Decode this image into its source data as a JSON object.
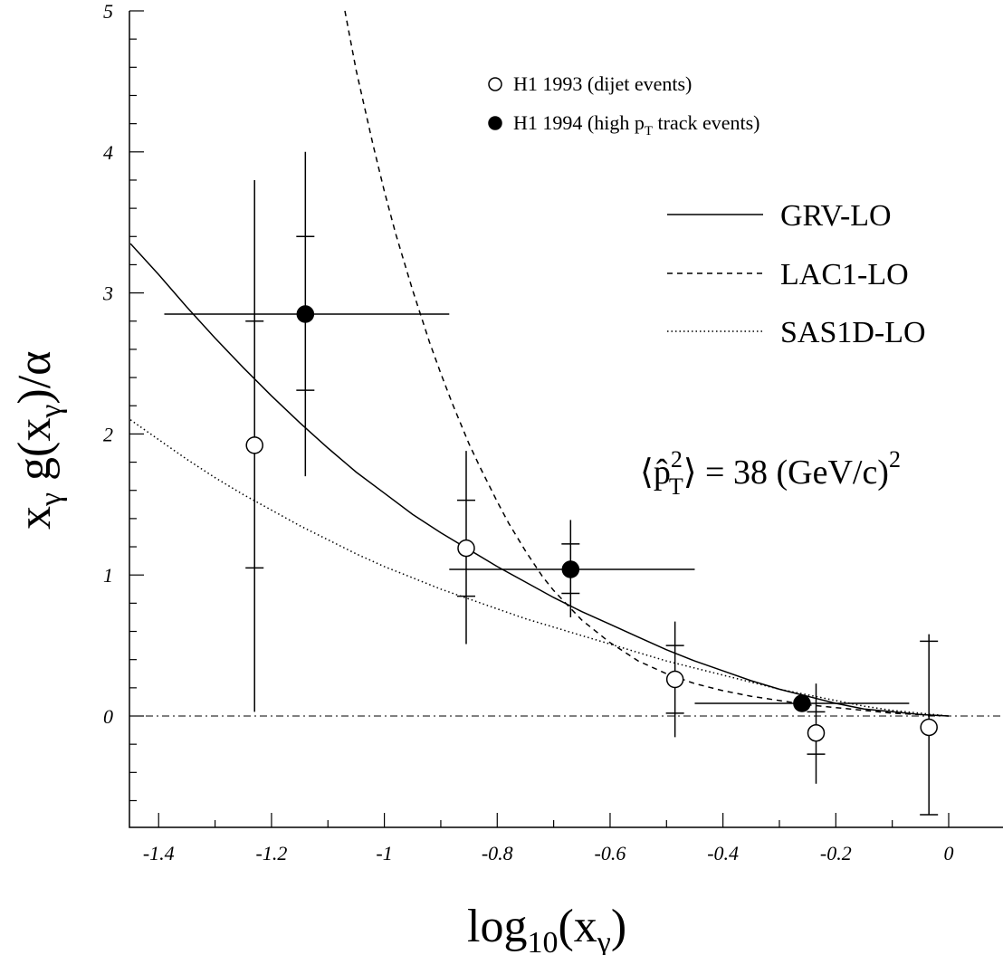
{
  "chart_data": {
    "type": "scatter",
    "xlabel": "log₁₀(xγ)",
    "ylabel": "xγ g(xγ)/α",
    "xlim": [
      -1.45,
      0.2
    ],
    "ylim": [
      -0.8,
      5
    ],
    "x_ticks": [
      "-1.4",
      "-1.2",
      "-1",
      "-0.8",
      "-0.6",
      "-0.4",
      "-0.2",
      "0"
    ],
    "y_ticks": [
      "0",
      "1",
      "2",
      "3",
      "4",
      "5"
    ],
    "annotation": "⟨p̂T²⟩ = 38 (GeV/c)²",
    "reference_line": {
      "y": 0,
      "style": "dash-dot"
    },
    "series": [
      {
        "name": "H1 1993 (dijet events)",
        "marker": "open-circle",
        "points": [
          {
            "x": -1.23,
            "y": 1.92,
            "stat_lo": 1.05,
            "stat_hi": 2.8,
            "tot_lo": 0.03,
            "tot_hi": 3.8
          },
          {
            "x": -0.855,
            "y": 1.19,
            "stat_lo": 0.85,
            "stat_hi": 1.53,
            "tot_lo": 0.51,
            "tot_hi": 1.88
          },
          {
            "x": -0.485,
            "y": 0.26,
            "stat_lo": 0.02,
            "stat_hi": 0.5,
            "tot_lo": -0.15,
            "tot_hi": 0.67
          },
          {
            "x": -0.235,
            "y": -0.12,
            "stat_lo": -0.27,
            "stat_hi": 0.03,
            "tot_lo": -0.48,
            "tot_hi": 0.23
          },
          {
            "x": -0.035,
            "y": -0.08,
            "stat_lo": -0.7,
            "stat_hi": 0.53,
            "tot_lo": -0.7,
            "tot_hi": 0.58
          }
        ]
      },
      {
        "name": "H1 1994 (high pT track events)",
        "marker": "filled-circle",
        "points": [
          {
            "x": -1.14,
            "x_lo": -1.39,
            "x_hi": -0.885,
            "y": 2.85,
            "stat_lo": 2.31,
            "stat_hi": 3.4,
            "tot_lo": 1.7,
            "tot_hi": 4.0
          },
          {
            "x": -0.67,
            "x_lo": -0.885,
            "x_hi": -0.45,
            "y": 1.04,
            "stat_lo": 0.87,
            "stat_hi": 1.22,
            "tot_lo": 0.7,
            "tot_hi": 1.39
          },
          {
            "x": -0.26,
            "x_lo": -0.45,
            "x_hi": -0.07,
            "y": 0.09,
            "stat_lo": 0.09,
            "stat_hi": 0.09,
            "tot_lo": 0.09,
            "tot_hi": 0.09
          }
        ]
      }
    ],
    "curves": [
      {
        "name": "GRV-LO",
        "style": "solid",
        "x": [
          -1.45,
          -1.4,
          -1.35,
          -1.3,
          -1.25,
          -1.2,
          -1.15,
          -1.1,
          -1.05,
          -1.0,
          -0.95,
          -0.9,
          -0.85,
          -0.8,
          -0.75,
          -0.7,
          -0.65,
          -0.6,
          -0.55,
          -0.5,
          -0.45,
          -0.4,
          -0.35,
          -0.3,
          -0.25,
          -0.2,
          -0.15,
          -0.1,
          -0.05,
          0.0
        ],
        "y": [
          3.35,
          3.13,
          2.9,
          2.68,
          2.47,
          2.27,
          2.08,
          1.9,
          1.73,
          1.58,
          1.43,
          1.3,
          1.18,
          1.06,
          0.95,
          0.84,
          0.74,
          0.65,
          0.56,
          0.47,
          0.39,
          0.32,
          0.25,
          0.19,
          0.14,
          0.09,
          0.05,
          0.03,
          0.01,
          0.0
        ]
      },
      {
        "name": "LAC1-LO",
        "style": "dashed",
        "x": [
          -1.07,
          -1.05,
          -1.02,
          -1.0,
          -0.98,
          -0.95,
          -0.92,
          -0.9,
          -0.88,
          -0.85,
          -0.83,
          -0.8,
          -0.78,
          -0.75,
          -0.72,
          -0.7,
          -0.65,
          -0.6,
          -0.55,
          -0.5,
          -0.45,
          -0.4,
          -0.35,
          -0.3,
          -0.25,
          -0.2,
          -0.15,
          -0.1,
          -0.05,
          0.0
        ],
        "y": [
          5.0,
          4.58,
          4.05,
          3.72,
          3.42,
          3.02,
          2.65,
          2.43,
          2.22,
          1.93,
          1.76,
          1.52,
          1.37,
          1.17,
          0.99,
          0.89,
          0.68,
          0.52,
          0.39,
          0.3,
          0.23,
          0.18,
          0.14,
          0.11,
          0.08,
          0.06,
          0.04,
          0.02,
          0.01,
          0.0
        ]
      },
      {
        "name": "SAS1D-LO",
        "style": "dotted",
        "x": [
          -1.45,
          -1.4,
          -1.35,
          -1.3,
          -1.25,
          -1.2,
          -1.15,
          -1.1,
          -1.05,
          -1.0,
          -0.95,
          -0.9,
          -0.85,
          -0.8,
          -0.75,
          -0.7,
          -0.65,
          -0.6,
          -0.55,
          -0.5,
          -0.45,
          -0.4,
          -0.35,
          -0.3,
          -0.25,
          -0.2,
          -0.15,
          -0.1,
          -0.05,
          0.0
        ],
        "y": [
          2.1,
          1.96,
          1.82,
          1.69,
          1.57,
          1.46,
          1.35,
          1.25,
          1.15,
          1.06,
          0.98,
          0.9,
          0.83,
          0.76,
          0.69,
          0.63,
          0.57,
          0.51,
          0.45,
          0.39,
          0.34,
          0.29,
          0.24,
          0.19,
          0.15,
          0.11,
          0.07,
          0.04,
          0.02,
          0.0
        ]
      }
    ]
  }
}
